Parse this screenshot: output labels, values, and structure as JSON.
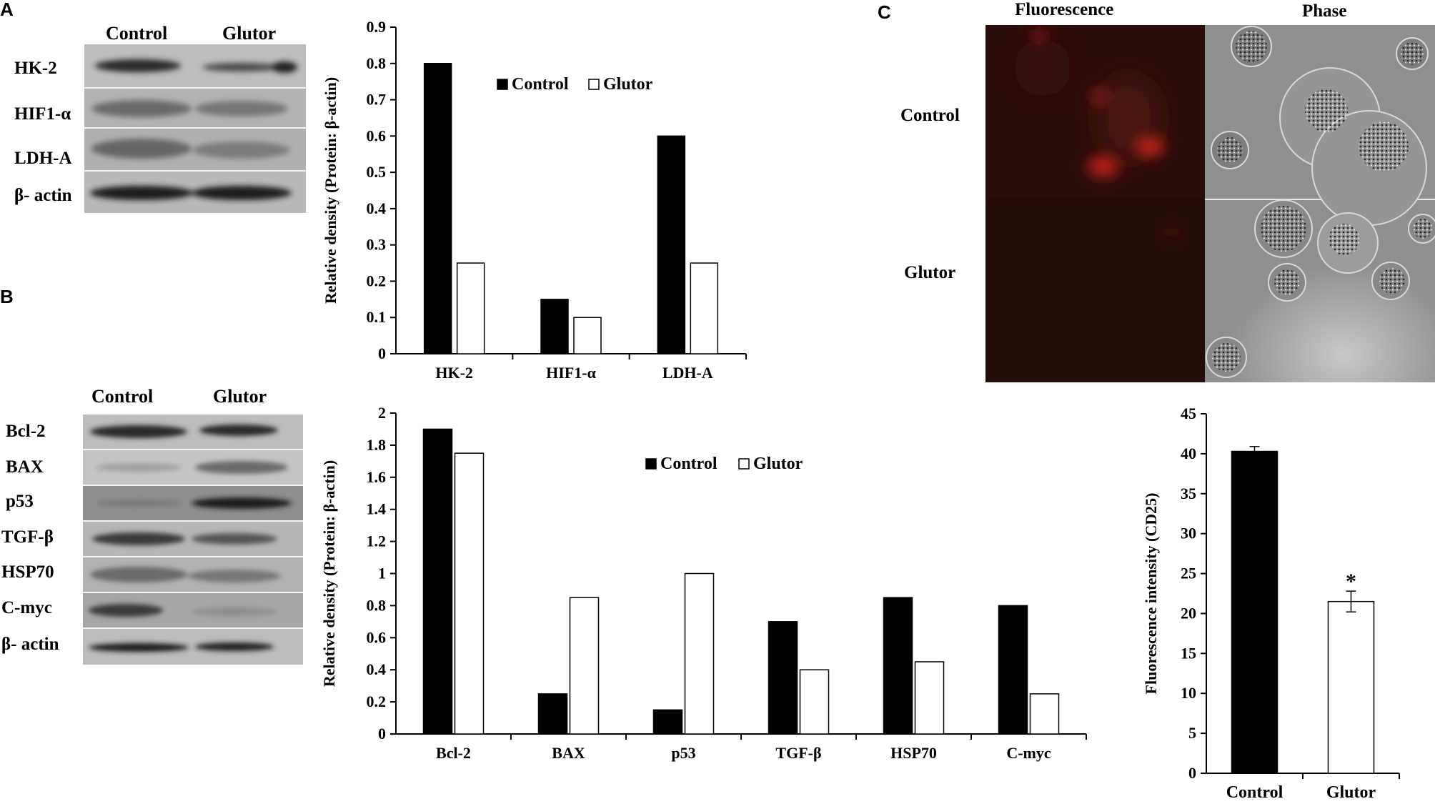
{
  "panels": {
    "a": "A",
    "b": "B",
    "c": "C"
  },
  "blot_a": {
    "columns": [
      "Control",
      "Glutor"
    ],
    "rows": [
      "HK-2",
      "HIF1-α",
      "LDH-A",
      "β- actin"
    ]
  },
  "blot_b": {
    "columns": [
      "Control",
      "Glutor"
    ],
    "rows": [
      "Bcl-2",
      "BAX",
      "p53",
      "TGF-β",
      "HSP70",
      "C-myc",
      "β- actin"
    ]
  },
  "micrograph": {
    "columns": [
      "Fluorescence",
      "Phase"
    ],
    "rows": [
      "Control",
      "Glutor"
    ]
  },
  "colors": {
    "control_bar": "#000000",
    "glutor_bar": "#ffffff",
    "fluorescence_bg": "#2a0d0a",
    "fluorescence_spot": "#d8261c",
    "phase_bg": "#9a9a9a"
  },
  "chart_data": [
    {
      "type": "bar",
      "panel": "A",
      "categories": [
        "HK-2",
        "HIF1-α",
        "LDH-A"
      ],
      "series": [
        {
          "name": "Control",
          "values": [
            0.8,
            0.15,
            0.6
          ]
        },
        {
          "name": "Glutor",
          "values": [
            0.25,
            0.1,
            0.25
          ]
        }
      ],
      "ylabel": "Relative density (Protein: β-actin)",
      "ylim": [
        0,
        0.9
      ],
      "yticks": [
        "0",
        "0.1",
        "0.2",
        "0.3",
        "0.4",
        "0.5",
        "0.6",
        "0.7",
        "0.8",
        "0.9"
      ],
      "legend": "top-center",
      "grid": false
    },
    {
      "type": "bar",
      "panel": "B",
      "categories": [
        "Bcl-2",
        "BAX",
        "p53",
        "TGF-β",
        "HSP70",
        "C-myc"
      ],
      "series": [
        {
          "name": "Control",
          "values": [
            1.9,
            0.25,
            0.15,
            0.7,
            0.85,
            0.8
          ]
        },
        {
          "name": "Glutor",
          "values": [
            1.75,
            0.85,
            1.0,
            0.4,
            0.45,
            0.25
          ]
        }
      ],
      "ylabel": "Relative density (Protein: β-actin)",
      "ylim": [
        0,
        2
      ],
      "yticks": [
        "0",
        "0.2",
        "0.4",
        "0.6",
        "0.8",
        "1",
        "1.2",
        "1.4",
        "1.6",
        "1.8",
        "2"
      ],
      "legend": "top-center",
      "grid": false
    },
    {
      "type": "bar",
      "panel": "C",
      "categories": [
        "Control",
        "Glutor"
      ],
      "values": [
        40.3,
        21.5
      ],
      "errors": [
        0.6,
        1.3
      ],
      "annotations": [
        "",
        "*"
      ],
      "ylabel": "Fluorescence intensity (CD25)",
      "ylim": [
        0,
        45
      ],
      "yticks": [
        "0",
        "5",
        "10",
        "15",
        "20",
        "25",
        "30",
        "35",
        "40",
        "45"
      ],
      "grid": false
    }
  ]
}
